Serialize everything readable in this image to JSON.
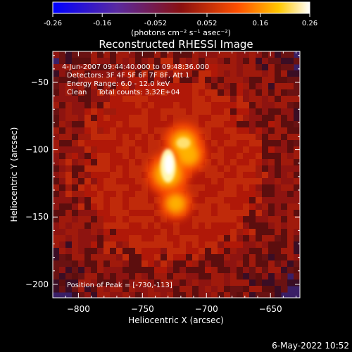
{
  "chart_data": {
    "type": "heatmap",
    "title": "Reconstructed RHESSI Image",
    "xlabel": "Heliocentric X (arcsec)",
    "ylabel": "Heliocentric Y (arcsec)",
    "xlim": [
      -820,
      -627
    ],
    "ylim": [
      -210,
      -27
    ],
    "xticks": [
      -800,
      -750,
      -700,
      -650
    ],
    "yticks": [
      -50,
      -100,
      -150,
      -200
    ],
    "colorbar": {
      "min": -0.26,
      "max": 0.26,
      "ticks": [
        "-0.26",
        "-0.16",
        "-0.052",
        "0.052",
        "0.16",
        "0.26"
      ],
      "unit_label": "(photons cm⁻² s⁻¹ asec⁻²)",
      "colormap": "blue-purple-red-yellow-white"
    },
    "annotations": {
      "time_range": "4-Jun-2007 09:44:40.000 to 09:48:36.000",
      "detectors": "Detectors: 3F 4F 5F 6F 7F 8F, Att 1",
      "energy_range": "Energy Range: 6.0 - 12.0 keV",
      "method_counts": "Clean     Total counts: 3.32E+04",
      "peak_position": "Position of Peak = [-730,-113]"
    },
    "peak": {
      "x": -730,
      "y": -113
    },
    "source_sketch": {
      "center": {
        "x": -727,
        "y": -114
      },
      "bright_arc": [
        {
          "x": -730,
          "y": -118,
          "value": 0.26
        },
        {
          "x": -718,
          "y": -95,
          "value": 0.21
        },
        {
          "x": -714,
          "y": -104,
          "value": 0.17
        },
        {
          "x": -724,
          "y": -140,
          "value": 0.13
        }
      ],
      "emission_radius_arcsec": 50
    }
  },
  "footer": {
    "timestamp": "6-May-2022 10:52"
  }
}
